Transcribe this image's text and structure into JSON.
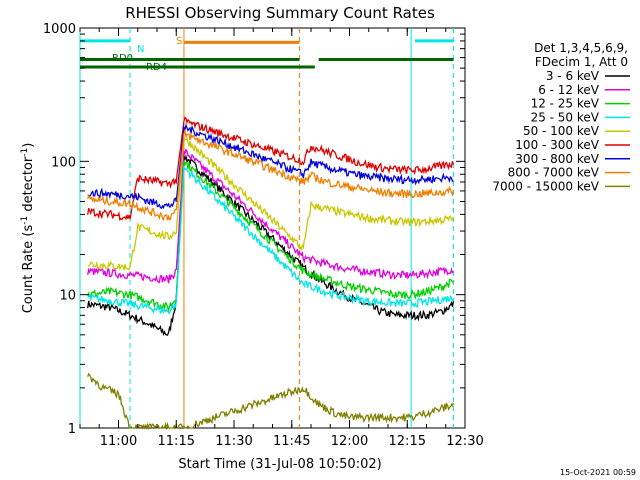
{
  "chart_data": {
    "type": "line",
    "title": "RHESSI Observing Summary Count Rates",
    "xlabel": "Start Time (31-Jul-08 10:50:02)",
    "ylabel_main": "Count Rate (s",
    "ylabel_sup1": "-1",
    "ylabel_mid": " detector",
    "ylabel_sup2": "-1",
    "ylabel_end": ")",
    "yscale": "log",
    "ylim": [
      1,
      1000
    ],
    "xlim": [
      "10:50",
      "12:30"
    ],
    "x_ticks": [
      "11:00",
      "11:15",
      "11:30",
      "11:45",
      "12:00",
      "12:15",
      "12:30"
    ],
    "y_ticks": [
      "1",
      "10",
      "100",
      "1000"
    ],
    "timestamp": "15-Oct-2021 00:59",
    "legend": {
      "header": [
        "Det 1,3,4,5,6,9,",
        "FDecim 1, Att 0"
      ],
      "placement": "right"
    },
    "series": [
      {
        "name": "3 - 6 keV",
        "color": "#000000",
        "x": [
          "10:52",
          "10:58",
          "11:03",
          "11:08",
          "11:13",
          "11:15",
          "11:17",
          "11:48",
          "11:52",
          "11:56",
          "12:00",
          "12:04",
          "12:08",
          "12:12",
          "12:16",
          "12:20",
          "12:24",
          "12:27"
        ],
        "y": [
          8.5,
          8.0,
          7.0,
          6.0,
          5.0,
          9.0,
          110,
          16,
          13,
          11,
          9.5,
          8.5,
          7.5,
          7.0,
          7.0,
          7.0,
          7.5,
          8.5
        ]
      },
      {
        "name": "6 - 12 keV",
        "color": "#e000e0",
        "x": [
          "10:52",
          "10:58",
          "11:03",
          "11:08",
          "11:13",
          "11:15",
          "11:17",
          "11:48",
          "11:52",
          "11:56",
          "12:00",
          "12:04",
          "12:08",
          "12:12",
          "12:16",
          "12:20",
          "12:24",
          "12:27"
        ],
        "y": [
          15,
          14.5,
          14,
          13.5,
          13,
          15,
          120,
          19,
          17.5,
          16.5,
          15.5,
          15,
          14.5,
          14,
          14,
          14.5,
          15,
          15.5
        ]
      },
      {
        "name": "12 - 25 keV",
        "color": "#00d000",
        "x": [
          "10:52",
          "10:58",
          "11:03",
          "11:08",
          "11:13",
          "11:15",
          "11:17",
          "11:48",
          "11:52",
          "11:56",
          "12:00",
          "12:04",
          "12:08",
          "12:12",
          "12:16",
          "12:20",
          "12:24",
          "12:27"
        ],
        "y": [
          10,
          10.5,
          10,
          9,
          8,
          9.5,
          100,
          15,
          13.5,
          12.5,
          11.5,
          11,
          10.5,
          10,
          10,
          10.5,
          11.5,
          12.5
        ]
      },
      {
        "name": "25 - 50 keV",
        "color": "#00e5e5",
        "x": [
          "10:52",
          "10:58",
          "11:03",
          "11:08",
          "11:13",
          "11:15",
          "11:17",
          "11:48",
          "11:52",
          "11:56",
          "12:00",
          "12:04",
          "12:08",
          "12:12",
          "12:16",
          "12:20",
          "12:24",
          "12:27"
        ],
        "y": [
          9.5,
          9.0,
          8.5,
          8.0,
          7.5,
          8.5,
          90,
          12,
          11,
          10,
          9.5,
          9.0,
          8.8,
          8.6,
          8.6,
          8.8,
          9.2,
          9.5
        ]
      },
      {
        "name": "50 - 100 keV",
        "color": "#c8c800",
        "x": [
          "10:52",
          "10:58",
          "11:03",
          "11:05",
          "11:08",
          "11:13",
          "11:15",
          "11:17",
          "11:48",
          "11:50",
          "11:54",
          "11:58",
          "12:02",
          "12:06",
          "12:10",
          "12:14",
          "12:18",
          "12:22",
          "12:27"
        ],
        "y": [
          17,
          16.5,
          16,
          32,
          30,
          27,
          30,
          150,
          22,
          47,
          44,
          41,
          39,
          37,
          36,
          35,
          35,
          36,
          37
        ]
      },
      {
        "name": "100 - 300 keV",
        "color": "#e00000",
        "x": [
          "10:52",
          "10:58",
          "11:03",
          "11:05",
          "11:08",
          "11:13",
          "11:15",
          "11:17",
          "11:48",
          "11:50",
          "11:54",
          "11:58",
          "12:02",
          "12:06",
          "12:10",
          "12:14",
          "12:18",
          "12:22",
          "12:27"
        ],
        "y": [
          42,
          40,
          38,
          75,
          72,
          68,
          72,
          200,
          100,
          130,
          118,
          108,
          99,
          92,
          88,
          86,
          86,
          90,
          96
        ]
      },
      {
        "name": "300 - 800 keV",
        "color": "#0000e0",
        "x": [
          "10:52",
          "10:58",
          "11:03",
          "11:05",
          "11:08",
          "11:13",
          "11:15",
          "11:17",
          "11:48",
          "11:50",
          "11:54",
          "11:58",
          "12:02",
          "12:06",
          "12:10",
          "12:14",
          "12:18",
          "12:22",
          "12:27"
        ],
        "y": [
          58,
          57,
          55,
          54,
          50,
          46,
          50,
          180,
          80,
          98,
          90,
          84,
          79,
          76,
          74,
          73,
          73,
          74,
          76
        ]
      },
      {
        "name": "800 - 7000 keV",
        "color": "#f07f00",
        "x": [
          "10:52",
          "10:58",
          "11:03",
          "11:05",
          "11:08",
          "11:13",
          "11:15",
          "11:17",
          "11:48",
          "11:50",
          "11:54",
          "11:58",
          "12:02",
          "12:06",
          "12:10",
          "12:14",
          "12:18",
          "12:22",
          "12:27"
        ],
        "y": [
          52,
          50,
          48,
          46,
          42,
          38,
          42,
          160,
          70,
          78,
          70,
          66,
          63,
          60,
          58,
          57,
          57,
          58,
          60
        ]
      },
      {
        "name": "7000 - 15000 keV",
        "color": "#808000",
        "x": [
          "10:52",
          "10:56",
          "11:00",
          "11:03",
          "11:08",
          "11:13",
          "11:15",
          "11:17",
          "11:48",
          "11:52",
          "11:56",
          "12:00",
          "12:04",
          "12:08",
          "12:12",
          "12:16",
          "12:20",
          "12:24",
          "12:27"
        ],
        "y": [
          2.5,
          2.0,
          1.8,
          1.0,
          1.0,
          1.0,
          1.0,
          1.0,
          2.0,
          1.5,
          1.3,
          1.2,
          1.2,
          1.2,
          1.2,
          1.2,
          1.3,
          1.4,
          1.5
        ]
      }
    ],
    "flag_bars": [
      {
        "label": "N",
        "color": "#00e5e5",
        "segments": [
          [
            "10:50",
            "11:03"
          ],
          [
            "12:17",
            "12:27"
          ]
        ],
        "level": 800
      },
      {
        "label": "S",
        "color": "#f07f00",
        "segments": [
          [
            "11:17",
            "11:47"
          ]
        ],
        "level": 780
      },
      {
        "label": "RD0",
        "color": "#006400",
        "segments": [
          [
            "10:50",
            "11:47"
          ],
          [
            "11:52",
            "12:27"
          ]
        ],
        "level": 580
      },
      {
        "label": "RD4",
        "color": "#006400",
        "segments": [
          [
            "10:50",
            "11:47"
          ],
          [
            "11:47",
            "11:51"
          ]
        ],
        "level": 510
      }
    ],
    "vlines": [
      {
        "x": "10:50",
        "color": "#00e5e5",
        "style": "solid"
      },
      {
        "x": "11:03",
        "color": "#00e5e5",
        "style": "dashed"
      },
      {
        "x": "11:17",
        "color": "#f07f00",
        "style": "solid"
      },
      {
        "x": "11:47",
        "color": "#f07f00",
        "style": "dashed"
      },
      {
        "x": "12:16",
        "color": "#00e5e5",
        "style": "solid"
      },
      {
        "x": "12:27",
        "color": "#00e5e5",
        "style": "dashed"
      }
    ]
  }
}
